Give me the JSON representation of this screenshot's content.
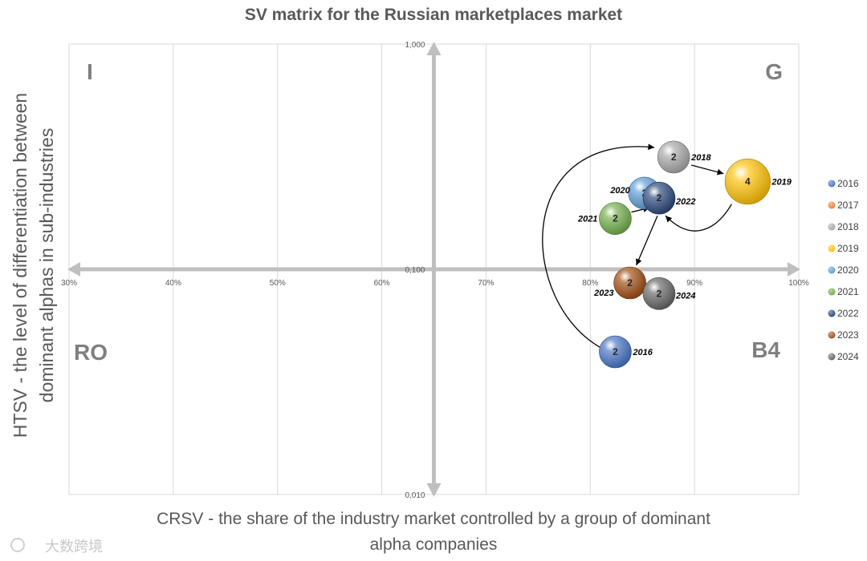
{
  "chart_data": {
    "type": "scatter",
    "title": "SV matrix for the Russian marketplaces market",
    "xlabel_lines": [
      "CRSV - the share of the industry market controlled by a group of dominant",
      "alpha companies"
    ],
    "ylabel_lines": [
      "HTSV - the level of differentiation between",
      "dominant alphas in sub-industries"
    ],
    "x_ticks": [
      "30%",
      "40%",
      "50%",
      "60%",
      "70%",
      "80%",
      "90%",
      "100%"
    ],
    "y_ticks": [
      "1,000",
      "0,100",
      "0,010"
    ],
    "xlim": [
      0.3,
      1.0
    ],
    "ylim": [
      0.01,
      1.0
    ],
    "y_scale": "log",
    "grid": "vertical",
    "legend_position": "right",
    "quadrants": {
      "top_left": "I",
      "top_right": "G",
      "bottom_left": "RO",
      "bottom_right": "B4"
    },
    "series": [
      {
        "name": "2016",
        "x": 0.824,
        "y": 0.043,
        "size": 2,
        "color": "#4472c4",
        "label": "2016"
      },
      {
        "name": "2017",
        "x": null,
        "y": null,
        "size": null,
        "color": "#ed7d31",
        "label": ""
      },
      {
        "name": "2018",
        "x": 0.88,
        "y": 0.315,
        "size": 2,
        "color": "#a5a5a5",
        "label": "2018"
      },
      {
        "name": "2019",
        "x": 0.951,
        "y": 0.245,
        "size": 4,
        "color": "#ffc000",
        "label": "2019"
      },
      {
        "name": "2020",
        "x": 0.852,
        "y": 0.218,
        "size": 2,
        "color": "#5b9bd5",
        "label": "2020"
      },
      {
        "name": "2021",
        "x": 0.824,
        "y": 0.168,
        "size": 2,
        "color": "#70ad47",
        "label": "2021"
      },
      {
        "name": "2022",
        "x": 0.866,
        "y": 0.207,
        "size": 2,
        "color": "#264478",
        "label": "2022"
      },
      {
        "name": "2023",
        "x": 0.838,
        "y": 0.087,
        "size": 2,
        "color": "#9e480e",
        "label": "2023"
      },
      {
        "name": "2024",
        "x": 0.866,
        "y": 0.078,
        "size": 2,
        "color": "#636363",
        "label": "2024"
      }
    ],
    "trajectory": [
      "2016",
      "2018",
      "2019",
      "2022",
      "2020",
      "2021",
      "2022",
      "2023",
      "2024"
    ]
  },
  "watermark": "大数跨境"
}
